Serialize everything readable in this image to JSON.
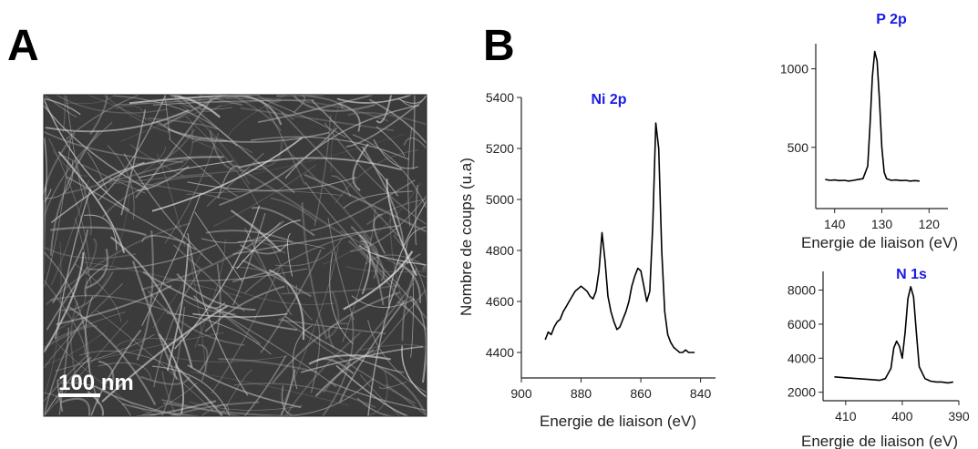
{
  "panels": {
    "a": "A",
    "b": "B"
  },
  "scale_bar": "100 nm",
  "chart_data": [
    {
      "type": "line",
      "title": "Ni 2p",
      "x_label": "Energie de liaison (eV)",
      "y_label": "Nombre de coups (u.a)",
      "x": [
        892,
        891,
        890,
        889,
        888,
        887,
        886,
        885,
        884,
        883,
        882,
        881,
        880,
        879,
        878,
        877,
        876,
        875,
        874,
        873,
        872,
        871,
        870,
        869,
        868,
        867,
        866,
        865,
        864,
        863,
        862,
        861,
        860,
        859,
        858,
        857,
        856,
        855,
        854,
        853,
        852,
        851,
        850,
        849,
        848,
        847,
        846,
        845,
        844,
        843,
        842
      ],
      "values": [
        4450,
        4480,
        4470,
        4500,
        4520,
        4530,
        4560,
        4580,
        4600,
        4620,
        4640,
        4650,
        4660,
        4650,
        4640,
        4620,
        4610,
        4640,
        4720,
        4870,
        4760,
        4620,
        4560,
        4520,
        4490,
        4500,
        4530,
        4560,
        4600,
        4660,
        4700,
        4730,
        4720,
        4660,
        4600,
        4640,
        4900,
        5300,
        5200,
        4800,
        4560,
        4470,
        4440,
        4420,
        4410,
        4400,
        4400,
        4410,
        4400,
        4400,
        4400
      ],
      "color": "#000000",
      "xlim": [
        900,
        835
      ],
      "xticks": [
        900,
        880,
        860,
        840
      ],
      "ylim": [
        4300,
        5400
      ],
      "yticks": [
        4400,
        4600,
        4800,
        5000,
        5200,
        5400
      ]
    },
    {
      "type": "line",
      "title": "P 2p",
      "x_label": "Energie de liaison (eV)",
      "x": [
        142,
        141,
        140,
        139,
        138,
        137,
        136,
        135,
        134,
        133,
        132.5,
        132,
        131.5,
        131,
        130.5,
        130,
        129.5,
        129,
        128,
        127,
        126,
        125,
        124,
        123,
        122
      ],
      "values": [
        295,
        290,
        292,
        288,
        290,
        285,
        290,
        295,
        300,
        380,
        650,
        950,
        1110,
        1050,
        800,
        500,
        340,
        300,
        290,
        292,
        288,
        290,
        285,
        288,
        285
      ],
      "color": "#000000",
      "xlim": [
        144,
        116
      ],
      "xticks": [
        140,
        130,
        120
      ],
      "ylim": [
        110,
        1160
      ],
      "yticks": [
        500,
        1000
      ]
    },
    {
      "type": "line",
      "title": "N 1s",
      "x_label": "Energie de liaison (eV)",
      "x": [
        412,
        410,
        408,
        406,
        404,
        403,
        402,
        401.5,
        401,
        400.5,
        400,
        399.5,
        399,
        398.5,
        398,
        397.5,
        397,
        396,
        395,
        394,
        393,
        392,
        391
      ],
      "values": [
        2900,
        2850,
        2800,
        2750,
        2700,
        2800,
        3400,
        4600,
        5000,
        4700,
        4000,
        5500,
        7500,
        8200,
        7600,
        5500,
        3500,
        2800,
        2650,
        2600,
        2600,
        2550,
        2600
      ],
      "color": "#000000",
      "xlim": [
        414,
        390
      ],
      "xticks": [
        410,
        400,
        390
      ],
      "ylim": [
        1500,
        9100
      ],
      "yticks": [
        2000,
        4000,
        6000,
        8000
      ]
    }
  ]
}
